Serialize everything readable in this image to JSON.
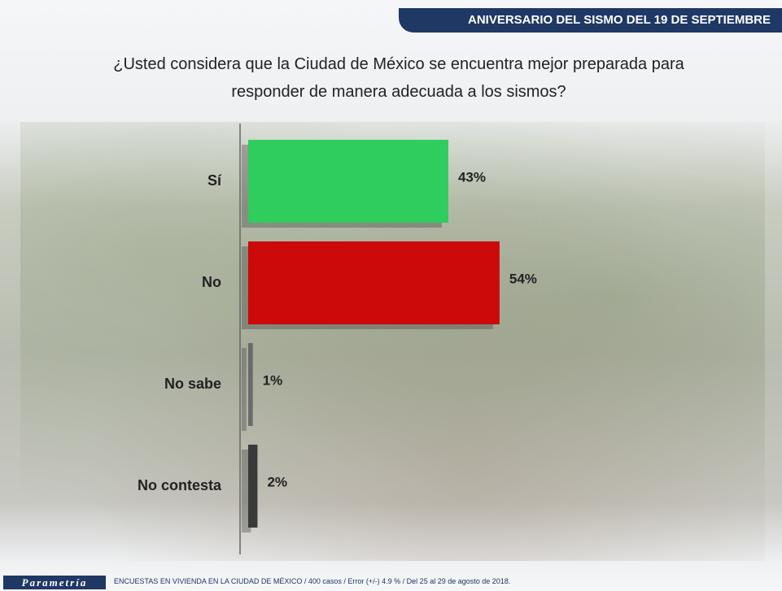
{
  "header": "ANIVERSARIO DEL SISMO DEL 19 DE SEPTIEMBRE",
  "chart_data": {
    "type": "bar",
    "orientation": "horizontal",
    "title": "¿Usted considera que la Ciudad de México se encuentra mejor preparada para responder de manera adecuada a los sismos?",
    "categories": [
      "Sí",
      "No",
      "No sabe",
      "No contesta"
    ],
    "values": [
      43,
      54,
      1,
      2
    ],
    "value_labels": [
      "43%",
      "54%",
      "1%",
      "2%"
    ],
    "colors": [
      "#2fcc5e",
      "#cc0a0a",
      "#6b6b6b",
      "#3a3a3a"
    ]
  },
  "footer": {
    "brand": "Parametría",
    "source": "ENCUESTAS EN VIVIENDA EN LA CIUDAD DE MÉXICO / 400 casos / Error (+/-) 4.9 % / Del 25 al 29 de agosto de 2018."
  }
}
